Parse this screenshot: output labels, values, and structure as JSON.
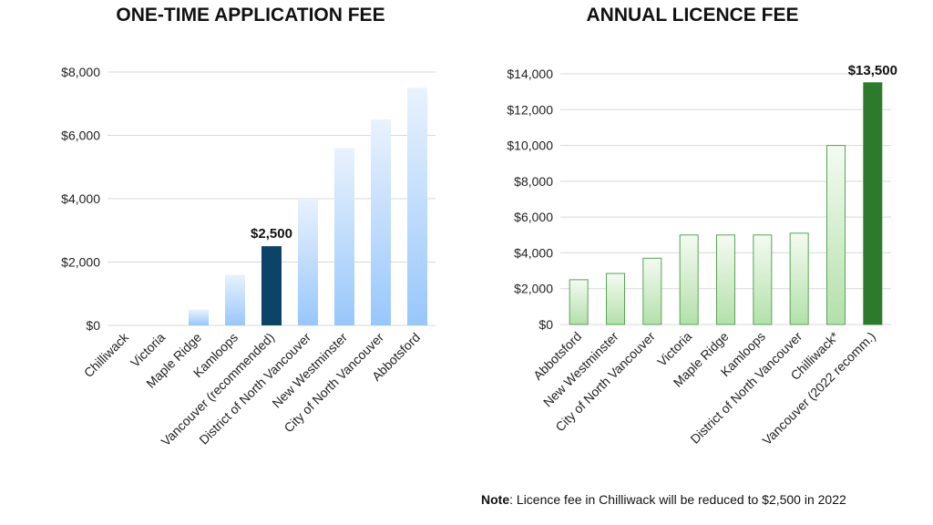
{
  "note": {
    "label": "Note",
    "text": ": Licence fee in Chilliwack will be reduced to $2,500 in 2022"
  },
  "chart_data": [
    {
      "type": "bar",
      "title": "ONE-TIME APPLICATION FEE",
      "xlabel": "",
      "ylabel": "",
      "ylim": [
        0,
        8000
      ],
      "yticks": [
        "$0",
        "$2,000",
        "$4,000",
        "$6,000",
        "$8,000"
      ],
      "grid": true,
      "categories": [
        "Chilliwack",
        "Victoria",
        "Maple Ridge",
        "Kamloops",
        "Vancouver (recommended)",
        "District of North Vancouver",
        "New Westminster",
        "City of North Vancouver",
        "Abbotsford"
      ],
      "values": [
        0,
        0,
        500,
        1600,
        2500,
        4000,
        5600,
        6500,
        7500
      ],
      "highlight_index": 4,
      "data_labels": [
        {
          "index": 4,
          "text": "$2,500"
        }
      ],
      "colors": {
        "bar_top": "#e8f1fc",
        "bar_bottom": "#99c8fb",
        "highlight": "#0b4466"
      }
    },
    {
      "type": "bar",
      "title": "ANNUAL LICENCE FEE",
      "xlabel": "",
      "ylabel": "",
      "ylim": [
        0,
        14000
      ],
      "yticks": [
        "$0",
        "$2,000",
        "$4,000",
        "$6,000",
        "$8,000",
        "$10,000",
        "$12,000",
        "$14,000"
      ],
      "grid": true,
      "categories": [
        "Abbotsford",
        "New Westminster",
        "City of North Vancouver",
        "Victoria",
        "Maple Ridge",
        "Kamloops",
        "District of North Vancouver",
        "Chilliwack*",
        "Vancouver (2022 recomm.)"
      ],
      "values": [
        2500,
        2850,
        3700,
        5000,
        5000,
        5000,
        5100,
        10000,
        13500
      ],
      "highlight_index": 8,
      "data_labels": [
        {
          "index": 8,
          "text": "$13,500"
        }
      ],
      "colors": {
        "bar_top": "#f2fbf0",
        "bar_bottom": "#b6e2ae",
        "bar_stroke": "#5aa356",
        "highlight": "#2e7a2c"
      }
    }
  ]
}
